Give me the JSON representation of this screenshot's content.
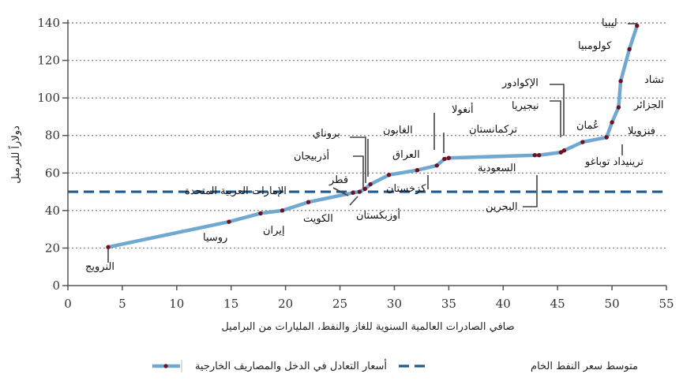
{
  "chart_data": {
    "type": "line",
    "title": "",
    "xlabel": "صافي الصادرات العالمية السنوية للغاز والنفط، المليارات من البراميل",
    "ylabel": "دولاراً للبرميل",
    "xlim": [
      0,
      55
    ],
    "ylim": [
      0,
      140
    ],
    "x_ticks": [
      "0",
      "5",
      "10",
      "15",
      "20",
      "25",
      "30",
      "35",
      "40",
      "45",
      "50",
      "55"
    ],
    "y_ticks": [
      "0",
      "20",
      "40",
      "60",
      "80",
      "100",
      "120",
      "140"
    ],
    "grid": "horizontal dotted",
    "colors": {
      "curve": "#6fa8d0",
      "marker": "#6e1020",
      "dashed": "#1f5b8c",
      "leader": "#444444",
      "axis": "#555555"
    },
    "reference_line": {
      "name": "متوسط سعر النفط الخام",
      "value": 50
    },
    "series": [
      {
        "name": "أسعار التعادل في الدخل والمصاريف الخارجية",
        "points": [
          {
            "x": 3.7,
            "y": 20.5,
            "label": "النرويج"
          },
          {
            "x": 14.8,
            "y": 34,
            "label": "روسيا"
          },
          {
            "x": 17.7,
            "y": 38.5,
            "label": "إيران"
          },
          {
            "x": 19.7,
            "y": 40,
            "label": "الكويت"
          },
          {
            "x": 22.1,
            "y": 44.5,
            "label": "الإمارات العربية المتحدة"
          },
          {
            "x": 26.2,
            "y": 49.5,
            "label": "قطر"
          },
          {
            "x": 26.8,
            "y": 50,
            "label": "أوزبكستان"
          },
          {
            "x": 27.3,
            "y": 51.5,
            "label": "أذربيجان"
          },
          {
            "x": 27.8,
            "y": 54,
            "label": "بروناي"
          },
          {
            "x": 29.5,
            "y": 59,
            "label": "الغابون"
          },
          {
            "x": 32.1,
            "y": 61.5,
            "label": "العراق"
          },
          {
            "x": 33.9,
            "y": 64,
            "label": "كزخستان"
          },
          {
            "x": 34.6,
            "y": 67.5,
            "label": "أنغولا"
          },
          {
            "x": 35.0,
            "y": 68,
            "label": "تركمانستان"
          },
          {
            "x": 42.9,
            "y": 69.5,
            "label": "السعودية"
          },
          {
            "x": 43.3,
            "y": 69.5,
            "label": "البحرين"
          },
          {
            "x": 45.3,
            "y": 71,
            "label": "نيجيريا"
          },
          {
            "x": 45.6,
            "y": 72,
            "label": "الإكوادور"
          },
          {
            "x": 47.3,
            "y": 76.5,
            "label": "عُمان"
          },
          {
            "x": 49.5,
            "y": 79,
            "label": "ترينيداد توباغو"
          },
          {
            "x": 50.0,
            "y": 87,
            "label": "فنزويلا"
          },
          {
            "x": 50.6,
            "y": 95,
            "label": "الجزائر"
          },
          {
            "x": 50.8,
            "y": 109,
            "label": "تشاد"
          },
          {
            "x": 51.6,
            "y": 126,
            "label": "كولومبيا"
          },
          {
            "x": 52.3,
            "y": 138.5,
            "label": "ليبيا"
          }
        ]
      }
    ]
  }
}
